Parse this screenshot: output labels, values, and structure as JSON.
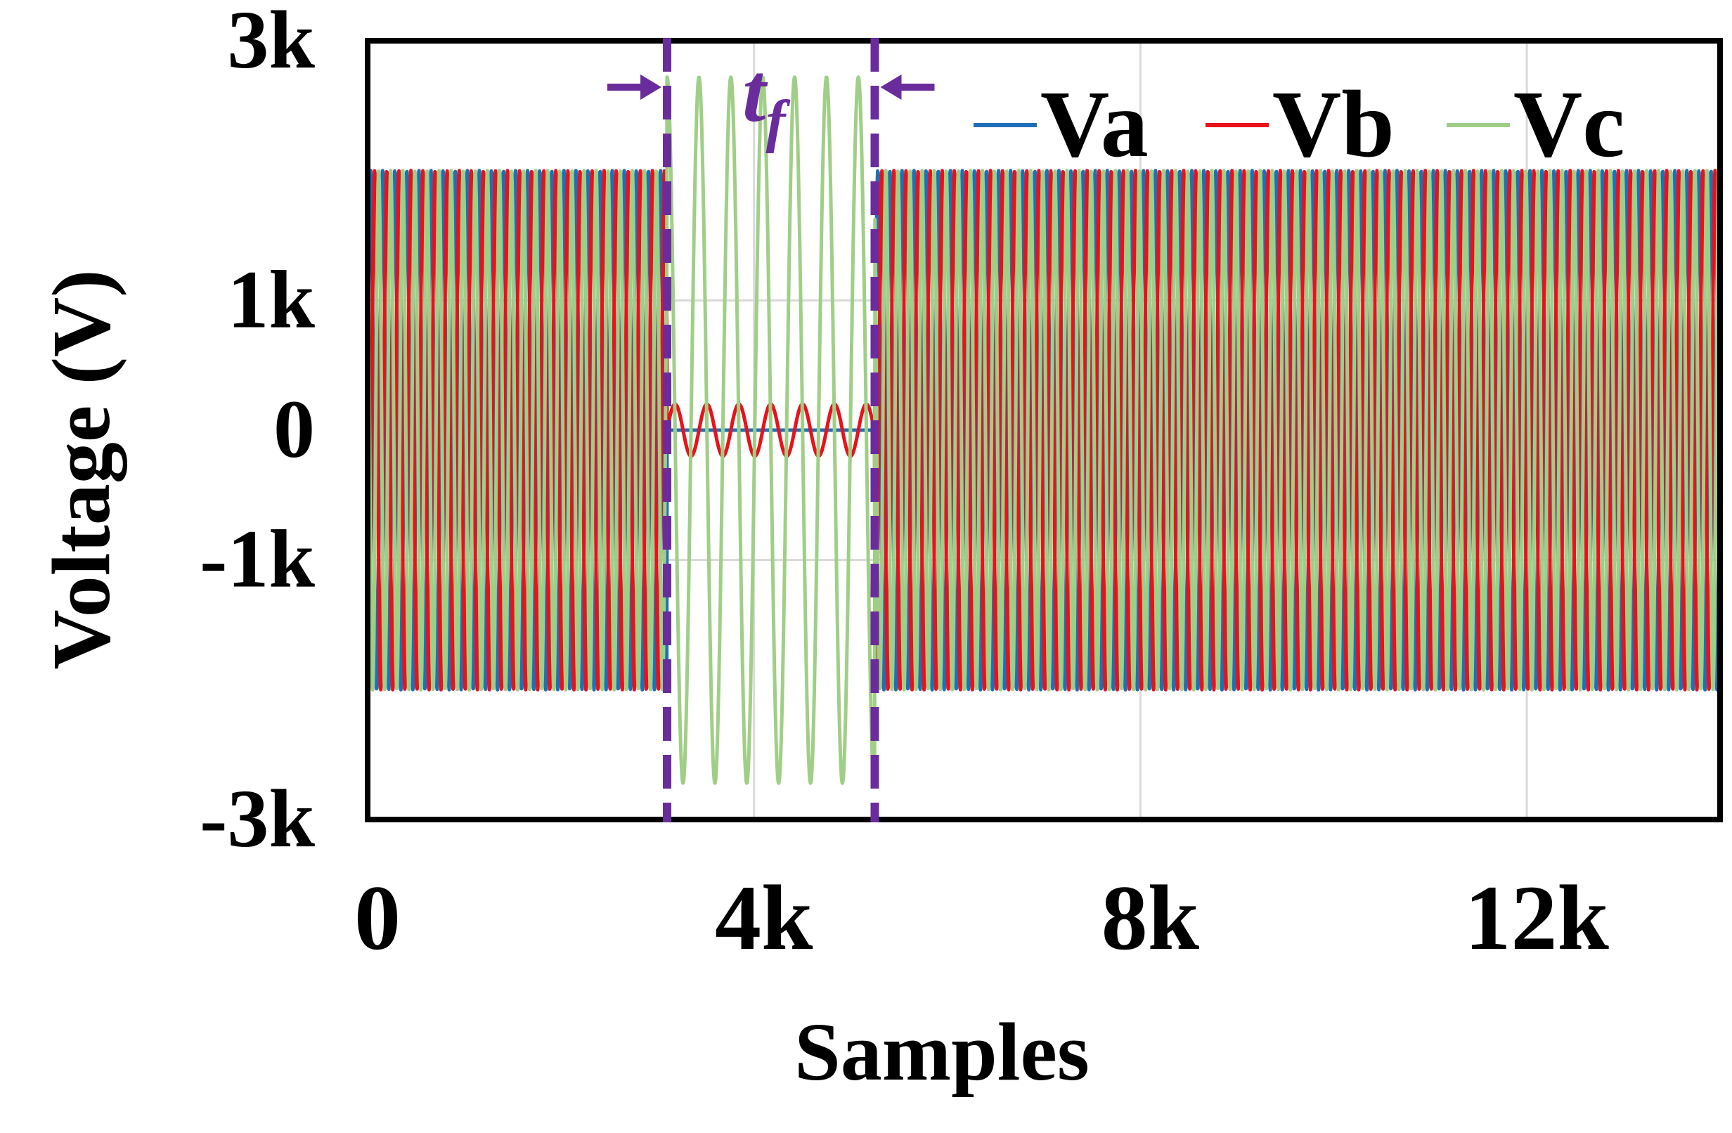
{
  "chart_data": {
    "type": "line",
    "xlabel": "Samples",
    "ylabel": "Voltage (V)",
    "xlim": [
      0,
      14000
    ],
    "ylim": [
      -3000,
      3000
    ],
    "x_ticks": [
      {
        "value": 0,
        "label": "0"
      },
      {
        "value": 4000,
        "label": "4k"
      },
      {
        "value": 8000,
        "label": "8k"
      },
      {
        "value": 12000,
        "label": "12k"
      }
    ],
    "y_ticks": [
      {
        "value": 3000,
        "label": "3k"
      },
      {
        "value": 1000,
        "label": "1k"
      },
      {
        "value": 0,
        "label": "0"
      },
      {
        "value": -1000,
        "label": "-1k"
      },
      {
        "value": -3000,
        "label": "-3k"
      }
    ],
    "grid": true,
    "legend_position": "top-right",
    "signal": {
      "cycle_samples": 125,
      "normal_amplitude": 2000,
      "fault_window": [
        3100,
        5250
      ],
      "fault_phase_amplitudes": {
        "Va": 0,
        "Vb": 200,
        "Vc": 2720
      },
      "fault_cycle_samples": 330
    },
    "series": [
      {
        "name": "Va",
        "color": "#1f6fb8",
        "phase_deg": 0
      },
      {
        "name": "Vb",
        "color": "#e8121b",
        "phase_deg": -120
      },
      {
        "name": "Vc",
        "color": "#9fcf86",
        "phase_deg": 120
      }
    ],
    "annotation": {
      "label_main": "t",
      "label_sub": "f",
      "color": "#6a2c9c",
      "x_start": 3100,
      "x_end": 5250
    }
  }
}
